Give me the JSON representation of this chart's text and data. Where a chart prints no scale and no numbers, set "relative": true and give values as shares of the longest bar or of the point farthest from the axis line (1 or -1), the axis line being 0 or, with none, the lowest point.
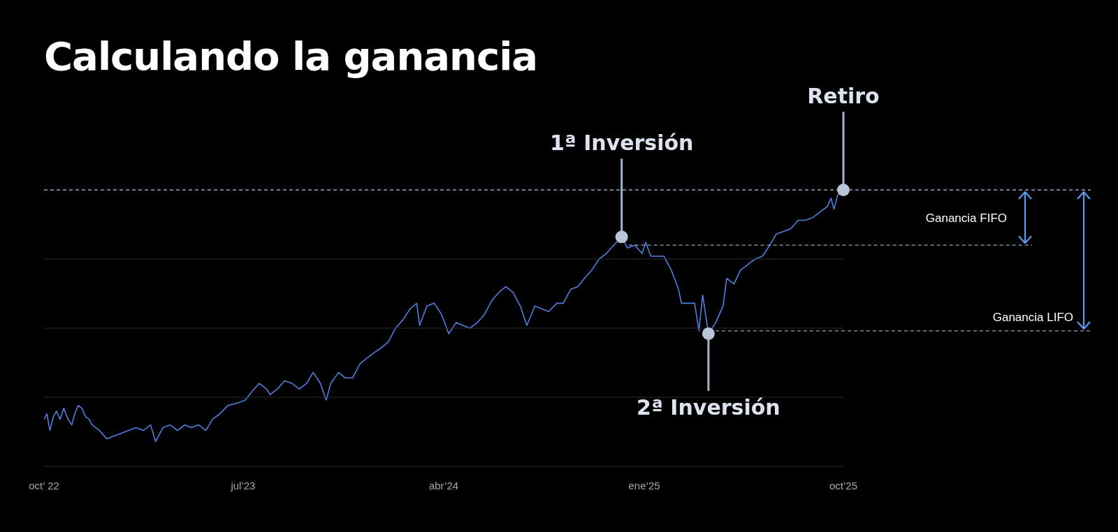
{
  "chart_data": {
    "type": "line",
    "title": "Calculando la ganancia",
    "relative": true,
    "marker": "none",
    "line_style": "solid",
    "xlim": [
      "2022-10-01",
      "2025-10-01"
    ],
    "xticks": [
      {
        "value": "2022-10-01",
        "label": "oct’ 22"
      },
      {
        "value": "2023-07-01",
        "label": "jul’23"
      },
      {
        "value": "2024-04-01",
        "label": "abr’24"
      },
      {
        "value": "2025-01-01",
        "label": "ene’25"
      },
      {
        "value": "2025-10-01",
        "label": "oct’25"
      }
    ],
    "x": [
      "2022-10-01",
      "2022-10-05",
      "2022-10-09",
      "2022-10-14",
      "2022-10-18",
      "2022-10-23",
      "2022-10-28",
      "2022-11-03",
      "2022-11-08",
      "2022-11-12",
      "2022-11-17",
      "2022-11-22",
      "2022-11-27",
      "2022-12-02",
      "2022-12-06",
      "2022-12-16",
      "2022-12-26",
      "2023-01-05",
      "2023-01-15",
      "2023-01-25",
      "2023-02-04",
      "2023-02-14",
      "2023-02-24",
      "2023-03-03",
      "2023-03-13",
      "2023-03-23",
      "2023-04-02",
      "2023-04-12",
      "2023-04-21",
      "2023-05-01",
      "2023-05-11",
      "2023-05-20",
      "2023-05-30",
      "2023-06-10",
      "2023-06-24",
      "2023-07-04",
      "2023-07-13",
      "2023-07-23",
      "2023-08-02",
      "2023-08-07",
      "2023-08-17",
      "2023-08-27",
      "2023-09-06",
      "2023-09-16",
      "2023-09-26",
      "2023-10-05",
      "2023-10-15",
      "2023-10-23",
      "2023-10-29",
      "2023-11-09",
      "2023-11-18",
      "2023-11-28",
      "2023-12-08",
      "2023-12-17",
      "2023-12-27",
      "2024-01-07",
      "2024-01-16",
      "2024-01-26",
      "2024-02-05",
      "2024-02-15",
      "2024-02-24",
      "2024-02-28",
      "2024-03-09",
      "2024-03-19",
      "2024-03-29",
      "2024-04-08",
      "2024-04-18",
      "2024-04-27",
      "2024-05-07",
      "2024-05-17",
      "2024-05-27",
      "2024-06-06",
      "2024-06-16",
      "2024-06-25",
      "2024-07-05",
      "2024-07-15",
      "2024-07-24",
      "2024-08-04",
      "2024-08-13",
      "2024-08-23",
      "2024-09-03",
      "2024-09-12",
      "2024-09-22",
      "2024-10-02",
      "2024-10-11",
      "2024-10-21",
      "2024-10-31",
      "2024-11-10",
      "2024-11-20",
      "2024-12-01",
      "2024-12-09",
      "2024-12-19",
      "2024-12-29",
      "2025-01-03",
      "2025-01-10",
      "2025-01-18",
      "2025-01-28",
      "2025-02-07",
      "2025-02-17",
      "2025-02-21",
      "2025-03-01",
      "2025-03-11",
      "2025-03-17",
      "2025-03-22",
      "2025-03-30",
      "2025-04-09",
      "2025-04-19",
      "2025-04-24",
      "2025-05-04",
      "2025-05-13",
      "2025-05-23",
      "2025-06-02",
      "2025-06-12",
      "2025-06-22",
      "2025-07-01",
      "2025-07-11",
      "2025-07-21",
      "2025-07-31",
      "2025-08-10",
      "2025-08-20",
      "2025-08-30",
      "2025-09-09",
      "2025-09-14",
      "2025-09-18",
      "2025-09-23",
      "2025-10-01"
    ],
    "series": [
      {
        "color": "#4f7fe0",
        "values": [
          0.17,
          0.19,
          0.13,
          0.18,
          0.2,
          0.17,
          0.21,
          0.17,
          0.15,
          0.19,
          0.22,
          0.21,
          0.18,
          0.17,
          0.15,
          0.13,
          0.1,
          0.11,
          0.12,
          0.13,
          0.14,
          0.13,
          0.15,
          0.09,
          0.14,
          0.15,
          0.13,
          0.15,
          0.14,
          0.15,
          0.13,
          0.17,
          0.19,
          0.22,
          0.23,
          0.24,
          0.27,
          0.3,
          0.28,
          0.26,
          0.28,
          0.31,
          0.3,
          0.28,
          0.3,
          0.34,
          0.3,
          0.24,
          0.3,
          0.34,
          0.32,
          0.32,
          0.37,
          0.39,
          0.41,
          0.43,
          0.45,
          0.5,
          0.53,
          0.57,
          0.59,
          0.51,
          0.58,
          0.59,
          0.55,
          0.48,
          0.52,
          0.51,
          0.5,
          0.52,
          0.55,
          0.6,
          0.63,
          0.65,
          0.63,
          0.58,
          0.51,
          0.58,
          0.57,
          0.56,
          0.59,
          0.59,
          0.64,
          0.65,
          0.68,
          0.71,
          0.75,
          0.77,
          0.8,
          0.83,
          0.79,
          0.8,
          0.77,
          0.81,
          0.76,
          0.76,
          0.76,
          0.71,
          0.64,
          0.59,
          0.59,
          0.59,
          0.49,
          0.62,
          0.48,
          0.52,
          0.58,
          0.68,
          0.66,
          0.71,
          0.73,
          0.75,
          0.76,
          0.8,
          0.84,
          0.85,
          0.86,
          0.89,
          0.89,
          0.9,
          0.92,
          0.94,
          0.97,
          0.93,
          0.98,
          1.0
        ]
      }
    ],
    "annotations": [
      {
        "text": "1ª Inversión",
        "x": "2024-12-01",
        "y": 0.83
      },
      {
        "text": "2ª Inversión",
        "x": "2025-03-30",
        "y": 0.48
      },
      {
        "text": "Retiro",
        "x": "2025-10-01",
        "y": 1.0
      },
      "Ganancia FIFO",
      "Ganancia LIFO"
    ],
    "ref_lines": [
      {
        "axis": "y",
        "value": 0.8,
        "color": "#9aa8c0",
        "line_style": "dashed"
      },
      {
        "axis": "y",
        "value": 0.49,
        "color": "#9aa8c0",
        "line_style": "dashed"
      },
      {
        "axis": "y",
        "value": 1.0,
        "color": "#9aa8c0",
        "line_style": "dashed"
      }
    ]
  }
}
